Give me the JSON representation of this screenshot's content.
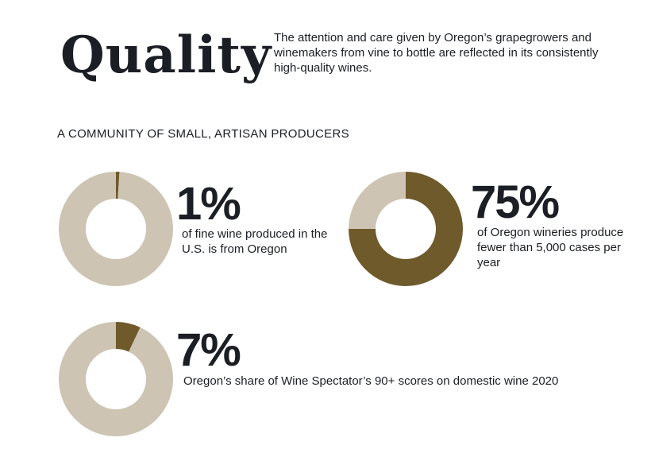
{
  "header": {
    "title": "Quality",
    "intro": "The attention and care given by Oregon’s grapegrowers and winemakers from vine to bottle are reflected in its consistently high-quality wines."
  },
  "section": {
    "heading": "A COMMUNITY OF SMALL, ARTISAN PRODUCERS"
  },
  "colors": {
    "highlight": "#6f5a2c",
    "remainder": "#cdc4b3",
    "text": "#1b1e24"
  },
  "chart_data": [
    {
      "type": "pie",
      "variant": "donut",
      "value_label": "1%",
      "caption": "of fine wine produced in the U.S. is from Oregon",
      "slices": [
        {
          "value": 1,
          "color": "#6f5a2c"
        },
        {
          "value": 99,
          "color": "#cdc4b3"
        }
      ]
    },
    {
      "type": "pie",
      "variant": "donut",
      "value_label": "75%",
      "caption": "of Oregon wineries produce fewer than 5,000 cases per year",
      "slices": [
        {
          "value": 75,
          "color": "#6f5a2c"
        },
        {
          "value": 25,
          "color": "#cdc4b3"
        }
      ]
    },
    {
      "type": "pie",
      "variant": "donut",
      "value_label": "7%",
      "caption": "Oregon’s share of Wine Spectator’s 90+ scores on domestic wine 2020",
      "slices": [
        {
          "value": 7,
          "color": "#6f5a2c"
        },
        {
          "value": 93,
          "color": "#cdc4b3"
        }
      ]
    }
  ]
}
